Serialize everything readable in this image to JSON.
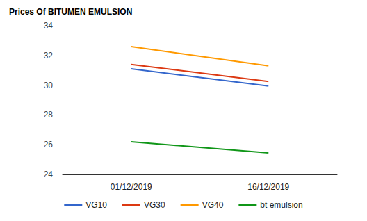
{
  "chart_data": {
    "type": "line",
    "title": "Prices Of BITUMEN EMULSION",
    "categories": [
      "01/12/2019",
      "16/12/2019"
    ],
    "series": [
      {
        "name": "VG10",
        "color": "#3366cc",
        "values": [
          31.1,
          29.95
        ]
      },
      {
        "name": "VG30",
        "color": "#dc3912",
        "values": [
          31.4,
          30.25
        ]
      },
      {
        "name": "VG40",
        "color": "#ff9900",
        "values": [
          32.6,
          31.3
        ]
      },
      {
        "name": "bt emulsion",
        "color": "#109618",
        "values": [
          26.2,
          25.45
        ]
      }
    ],
    "ylim": [
      24,
      34
    ],
    "yticks": [
      24,
      26,
      28,
      30,
      32,
      34
    ],
    "grid": true,
    "legend": "bottom"
  }
}
